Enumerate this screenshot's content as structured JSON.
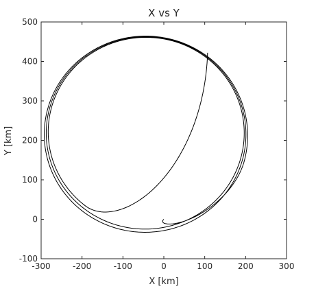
{
  "chart_data": {
    "type": "line",
    "title": "X vs Y",
    "xlabel": "X [km]",
    "ylabel": "Y [km]",
    "xlim": [
      -300,
      300
    ],
    "ylim": [
      -100,
      500
    ],
    "x_ticks": [
      -300,
      -200,
      -100,
      0,
      100,
      200,
      300
    ],
    "y_ticks": [
      -100,
      0,
      100,
      200,
      300,
      400,
      500
    ],
    "x_tick_labels": [
      "-300",
      "-200",
      "-100",
      "0",
      "100",
      "200",
      "300"
    ],
    "y_tick_labels": [
      "-100",
      "0",
      "100",
      "200",
      "300",
      "400",
      "500"
    ],
    "grid": false,
    "legend": "none",
    "series": [
      {
        "color": "#000000",
        "path": {
          "kind": "spiral",
          "start": [
            0,
            0
          ],
          "end": [
            107,
            422
          ],
          "turns": 3.1,
          "center_start": [
            -45,
            212
          ],
          "center_end": [
            -44,
            222
          ],
          "radius_x_start": 251,
          "radius_x_end": 237,
          "radius_y_start": 253,
          "radius_y_end": 238
        }
      }
    ]
  }
}
